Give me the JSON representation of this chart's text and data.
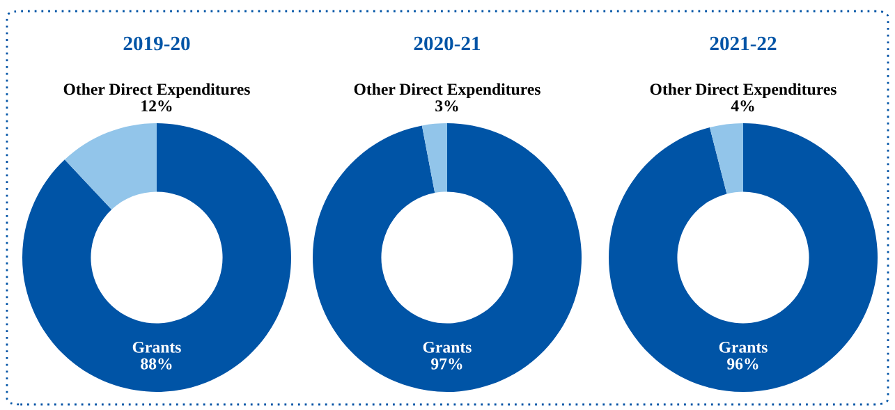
{
  "chart_data": [
    {
      "type": "donut",
      "title": "2019-20",
      "categories": [
        "Grants",
        "Other Direct Expenditures"
      ],
      "values": [
        88,
        12
      ],
      "value_labels": [
        "88%",
        "12%"
      ],
      "colors": [
        "#0054a6",
        "#92c5ea"
      ]
    },
    {
      "type": "donut",
      "title": "2020-21",
      "categories": [
        "Grants",
        "Other Direct Expenditures"
      ],
      "values": [
        97,
        3
      ],
      "value_labels": [
        "97%",
        "3%"
      ],
      "colors": [
        "#0054a6",
        "#92c5ea"
      ]
    },
    {
      "type": "donut",
      "title": "2021-22",
      "categories": [
        "Grants",
        "Other Direct Expenditures"
      ],
      "values": [
        96,
        4
      ],
      "value_labels": [
        "96%",
        "4%"
      ],
      "colors": [
        "#0054a6",
        "#92c5ea"
      ]
    }
  ]
}
